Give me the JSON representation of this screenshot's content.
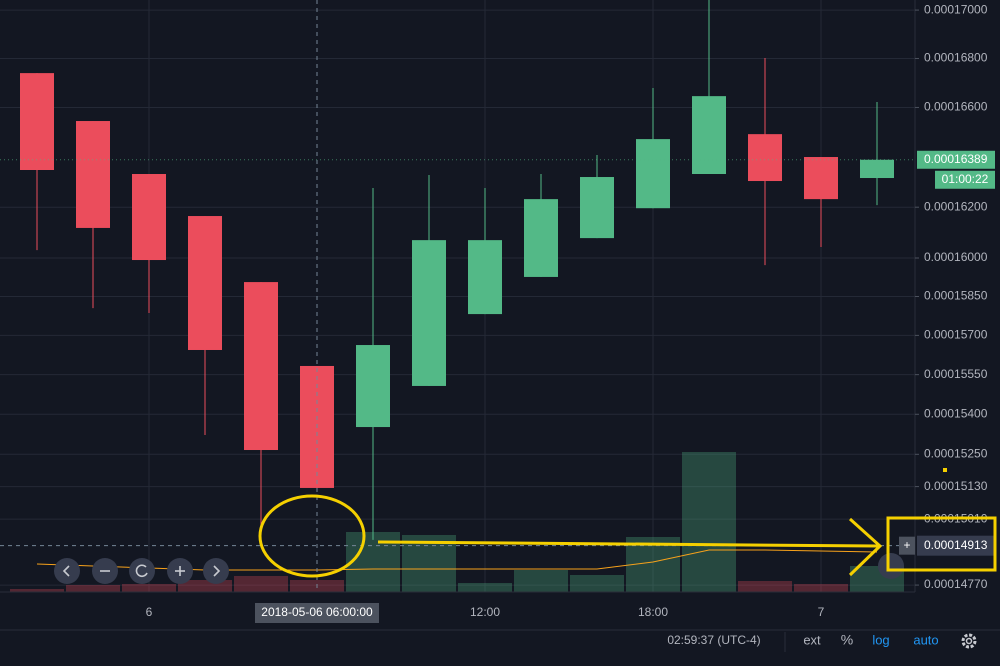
{
  "chart_data": {
    "type": "candlestick",
    "categories": [
      null,
      null,
      "6",
      null,
      null,
      null,
      null,
      null,
      "12:00",
      null,
      null,
      "18:00",
      null,
      null,
      "7",
      null
    ],
    "open": [
      0.0001674,
      0.00016545,
      0.00016332,
      0.00016165,
      0.00015906,
      0.00015583,
      0.00015352,
      0.00015507,
      0.00015782,
      0.00015926,
      0.00016078,
      0.00016196,
      0.00016332,
      0.00016492,
      0.000164,
      0.00016316
    ],
    "high": [
      0.0001674,
      0.00016545,
      0.00016332,
      0.00016165,
      0.00015906,
      0.00015583,
      0.00016276,
      0.00016328,
      0.00016276,
      0.00016332,
      0.00016408,
      0.00016679,
      0.0001705,
      0.00016802,
      0.000164,
      0.00016622
    ],
    "low": [
      0.00016031,
      0.00015805,
      0.00015786,
      0.00015322,
      0.00014934,
      0.00015125,
      0.00014934,
      0.00015507,
      0.00015782,
      0.00015926,
      0.00016078,
      0.00016196,
      0.00016332,
      0.00015972,
      0.00016043,
      0.00016208
    ],
    "close": [
      0.00016348,
      0.00016118,
      0.00015992,
      0.00015644,
      0.00015266,
      0.00015125,
      0.00015663,
      0.0001607,
      0.0001607,
      0.00016232,
      0.0001632,
      0.00016472,
      0.00016646,
      0.00016304,
      0.00016232,
      0.00016389
    ],
    "volume": [
      3,
      7,
      8,
      12,
      16,
      12,
      60,
      57,
      9,
      22,
      17,
      55,
      140,
      11,
      8,
      26
    ],
    "volume_ma": [
      28,
      26,
      24,
      22,
      22,
      22,
      23,
      23,
      23,
      23,
      23,
      30,
      42,
      42,
      41,
      40
    ],
    "up_color": "#53b987",
    "down_color": "#eb4d5c",
    "ma_color": "#f7a21b",
    "log": true,
    "grid": true,
    "ylim": [
      0.00014745,
      0.00017042
    ],
    "yticks": [
      {
        "value": 0.00017,
        "label": "0.00017000"
      },
      {
        "value": 0.000168,
        "label": "0.00016800"
      },
      {
        "value": 0.000166,
        "label": "0.00016600"
      },
      {
        "value": 0.000162,
        "label": "0.00016200"
      },
      {
        "value": 0.00016,
        "label": "0.00016000"
      },
      {
        "value": 0.0001585,
        "label": "0.00015850"
      },
      {
        "value": 0.000157,
        "label": "0.00015700"
      },
      {
        "value": 0.0001555,
        "label": "0.00015550"
      },
      {
        "value": 0.000154,
        "label": "0.00015400"
      },
      {
        "value": 0.0001525,
        "label": "0.00015250"
      },
      {
        "value": 0.0001513,
        "label": "0.00015130"
      },
      {
        "value": 0.0001501,
        "label": "0.00015010"
      },
      {
        "value": 0.0001477,
        "label": "0.00014770"
      }
    ],
    "last_price": {
      "value": 0.00016389,
      "label": "0.00016389"
    },
    "countdown": "01:00:22",
    "crosshair": {
      "x_label": "2018-05-06 06:00:00",
      "y": {
        "value": 0.00014913,
        "label": "0.00014913"
      }
    }
  },
  "toolbar": {
    "time": "02:59:37 (UTC-4)",
    "ext": "ext",
    "percent": "%",
    "log": "log",
    "auto": "auto"
  }
}
